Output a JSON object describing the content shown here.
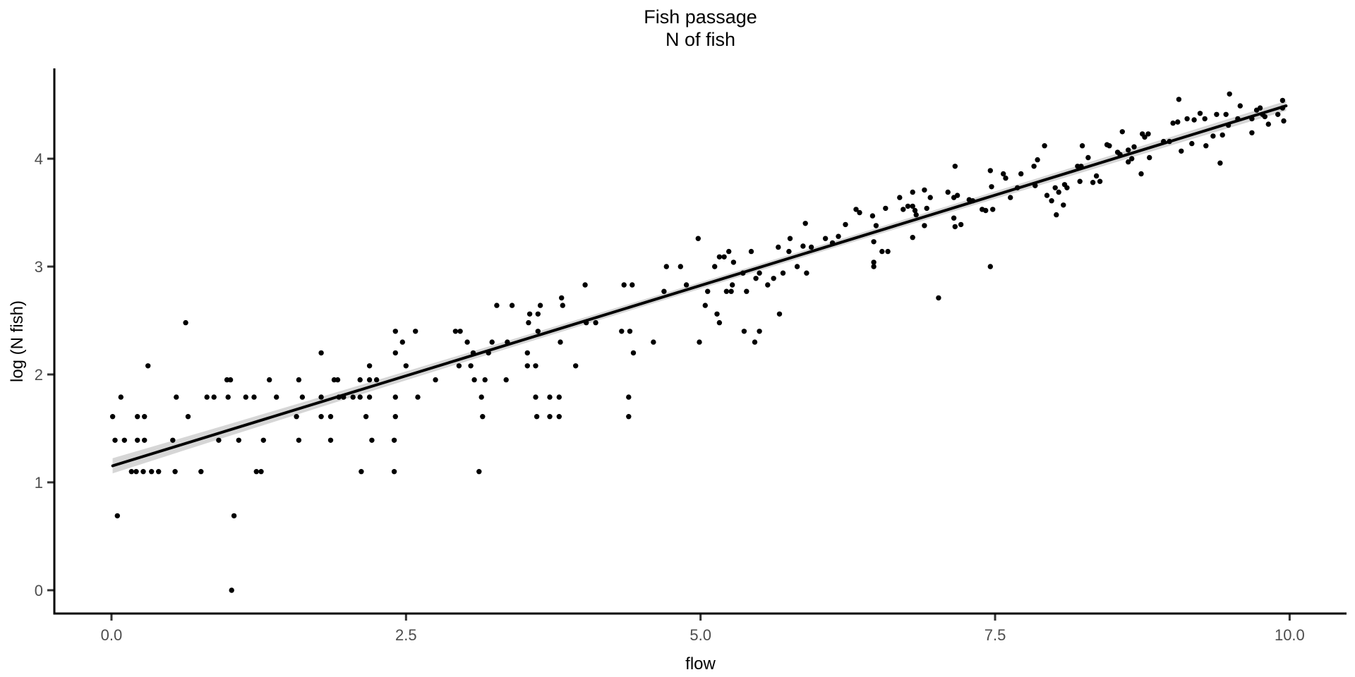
{
  "chart_data": {
    "type": "scatter",
    "title": "Fish passage\nN of fish",
    "title_line1": "Fish passage",
    "title_line2": "N of fish",
    "xlabel": "flow",
    "ylabel": "log (N fish)",
    "x_axis": {
      "tick_labels": [
        "0.0",
        "2.5",
        "5.0",
        "7.5",
        "10.0"
      ],
      "tick_values": [
        0,
        2.5,
        5,
        7.5,
        10
      ],
      "range": [
        -0.485,
        10.483
      ]
    },
    "y_axis": {
      "tick_labels": [
        "0",
        "1",
        "2",
        "3",
        "4"
      ],
      "tick_values": [
        0,
        1,
        2,
        3,
        4
      ],
      "range": [
        -0.216,
        4.837
      ]
    },
    "grid": false,
    "legend": "none",
    "colors": {
      "point": "#000000",
      "regression_line": "#000000",
      "confidence_band": "#d6d6d6",
      "axis_line": "#000000",
      "tick_mark": "#333333",
      "tick_text": "#4d4d4d",
      "title_text": "#000000",
      "background": "#ffffff"
    },
    "regression_line": {
      "intercept": 1.15,
      "slope": 0.335,
      "x_start": 0.01,
      "x_end": 9.97
    },
    "ci_band": {
      "flows": [
        0.01,
        1,
        2,
        3,
        4,
        5,
        6,
        7,
        8,
        9,
        9.97
      ],
      "halfwidths": [
        0.07,
        0.055,
        0.045,
        0.038,
        0.033,
        0.031,
        0.031,
        0.033,
        0.036,
        0.04,
        0.046
      ]
    },
    "points": [
      [
        0.63,
        2.48
      ],
      [
        1.78,
        2.2
      ],
      [
        0.31,
        2.08
      ],
      [
        2.19,
        2.08
      ],
      [
        0.98,
        1.95
      ],
      [
        1.01,
        1.95
      ],
      [
        1.34,
        1.95
      ],
      [
        1.59,
        1.95
      ],
      [
        1.89,
        1.95
      ],
      [
        1.92,
        1.95
      ],
      [
        2.11,
        1.95
      ],
      [
        2.19,
        1.95
      ],
      [
        2.25,
        1.95
      ],
      [
        0.08,
        1.79
      ],
      [
        0.55,
        1.79
      ],
      [
        0.81,
        1.79
      ],
      [
        0.87,
        1.79
      ],
      [
        0.99,
        1.79
      ],
      [
        1.14,
        1.79
      ],
      [
        1.21,
        1.79
      ],
      [
        1.4,
        1.79
      ],
      [
        1.62,
        1.79
      ],
      [
        1.78,
        1.79
      ],
      [
        1.93,
        1.79
      ],
      [
        1.97,
        1.79
      ],
      [
        2.05,
        1.79
      ],
      [
        2.11,
        1.79
      ],
      [
        2.19,
        1.79
      ],
      [
        0.01,
        1.61
      ],
      [
        0.22,
        1.61
      ],
      [
        0.28,
        1.61
      ],
      [
        0.65,
        1.61
      ],
      [
        1.57,
        1.61
      ],
      [
        1.78,
        1.61
      ],
      [
        1.86,
        1.61
      ],
      [
        2.16,
        1.61
      ],
      [
        0.03,
        1.39
      ],
      [
        0.11,
        1.39
      ],
      [
        0.22,
        1.39
      ],
      [
        0.28,
        1.39
      ],
      [
        0.52,
        1.39
      ],
      [
        0.91,
        1.39
      ],
      [
        1.08,
        1.39
      ],
      [
        1.29,
        1.39
      ],
      [
        1.59,
        1.39
      ],
      [
        1.86,
        1.39
      ],
      [
        2.21,
        1.39
      ],
      [
        2.4,
        1.39
      ],
      [
        0.17,
        1.1
      ],
      [
        0.21,
        1.1
      ],
      [
        0.27,
        1.1
      ],
      [
        0.34,
        1.1
      ],
      [
        0.4,
        1.1
      ],
      [
        0.54,
        1.1
      ],
      [
        0.76,
        1.1
      ],
      [
        1.23,
        1.1
      ],
      [
        1.27,
        1.1
      ],
      [
        2.12,
        1.1
      ],
      [
        2.4,
        1.1
      ],
      [
        3.12,
        1.1
      ],
      [
        0.05,
        0.69
      ],
      [
        1.04,
        0.69
      ],
      [
        1.02,
        0.0
      ],
      [
        2.41,
        1.61
      ],
      [
        3.15,
        1.61
      ],
      [
        3.61,
        1.61
      ],
      [
        3.72,
        1.61
      ],
      [
        3.8,
        1.61
      ],
      [
        4.39,
        1.61
      ],
      [
        2.41,
        1.79
      ],
      [
        2.6,
        1.79
      ],
      [
        3.14,
        1.79
      ],
      [
        3.6,
        1.79
      ],
      [
        3.72,
        1.79
      ],
      [
        3.8,
        1.79
      ],
      [
        4.39,
        1.79
      ],
      [
        2.75,
        1.95
      ],
      [
        3.08,
        1.95
      ],
      [
        3.17,
        1.95
      ],
      [
        3.35,
        1.95
      ],
      [
        2.5,
        2.08
      ],
      [
        2.95,
        2.08
      ],
      [
        3.05,
        2.08
      ],
      [
        3.53,
        2.08
      ],
      [
        3.6,
        2.08
      ],
      [
        3.94,
        2.08
      ],
      [
        2.41,
        2.2
      ],
      [
        3.07,
        2.2
      ],
      [
        3.2,
        2.2
      ],
      [
        3.53,
        2.2
      ],
      [
        4.43,
        2.2
      ],
      [
        2.47,
        2.3
      ],
      [
        3.02,
        2.3
      ],
      [
        3.23,
        2.3
      ],
      [
        3.36,
        2.3
      ],
      [
        3.81,
        2.3
      ],
      [
        4.6,
        2.3
      ],
      [
        4.99,
        2.3
      ],
      [
        5.46,
        2.3
      ],
      [
        2.41,
        2.4
      ],
      [
        2.58,
        2.4
      ],
      [
        2.92,
        2.4
      ],
      [
        2.96,
        2.4
      ],
      [
        3.62,
        2.4
      ],
      [
        4.33,
        2.4
      ],
      [
        4.4,
        2.4
      ],
      [
        5.37,
        2.4
      ],
      [
        5.5,
        2.4
      ],
      [
        3.54,
        2.48
      ],
      [
        4.03,
        2.48
      ],
      [
        4.11,
        2.48
      ],
      [
        5.16,
        2.48
      ],
      [
        3.55,
        2.56
      ],
      [
        3.62,
        2.56
      ],
      [
        5.14,
        2.56
      ],
      [
        5.67,
        2.56
      ],
      [
        3.27,
        2.64
      ],
      [
        3.4,
        2.64
      ],
      [
        3.64,
        2.64
      ],
      [
        3.83,
        2.64
      ],
      [
        5.04,
        2.64
      ],
      [
        3.82,
        2.71
      ],
      [
        7.02,
        2.71
      ],
      [
        4.69,
        2.77
      ],
      [
        5.06,
        2.77
      ],
      [
        5.22,
        2.77
      ],
      [
        5.26,
        2.77
      ],
      [
        5.39,
        2.77
      ],
      [
        4.02,
        2.83
      ],
      [
        4.35,
        2.83
      ],
      [
        4.42,
        2.83
      ],
      [
        4.88,
        2.83
      ],
      [
        5.27,
        2.83
      ],
      [
        5.57,
        2.83
      ],
      [
        5.47,
        2.89
      ],
      [
        5.62,
        2.89
      ],
      [
        5.36,
        2.94
      ],
      [
        5.5,
        2.94
      ],
      [
        5.7,
        2.94
      ],
      [
        5.9,
        2.94
      ],
      [
        4.71,
        3.0
      ],
      [
        4.83,
        3.0
      ],
      [
        5.12,
        3.0
      ],
      [
        5.82,
        3.0
      ],
      [
        6.47,
        3.0
      ],
      [
        7.46,
        3.0
      ],
      [
        5.28,
        3.04
      ],
      [
        6.47,
        3.04
      ],
      [
        5.16,
        3.09
      ],
      [
        5.2,
        3.09
      ],
      [
        5.24,
        3.14
      ],
      [
        5.43,
        3.14
      ],
      [
        5.75,
        3.14
      ],
      [
        6.54,
        3.14
      ],
      [
        6.59,
        3.14
      ],
      [
        5.66,
        3.18
      ],
      [
        5.87,
        3.19
      ],
      [
        5.94,
        3.18
      ],
      [
        4.98,
        3.26
      ],
      [
        5.76,
        3.26
      ],
      [
        6.06,
        3.26
      ],
      [
        6.12,
        3.22
      ],
      [
        6.17,
        3.28
      ],
      [
        6.23,
        3.39
      ],
      [
        5.89,
        3.4
      ],
      [
        6.32,
        3.53
      ],
      [
        6.35,
        3.5
      ],
      [
        6.46,
        3.47
      ],
      [
        6.49,
        3.38
      ],
      [
        6.47,
        3.23
      ],
      [
        6.57,
        3.54
      ],
      [
        6.69,
        3.64
      ],
      [
        6.72,
        3.53
      ],
      [
        6.76,
        3.56
      ],
      [
        6.8,
        3.69
      ],
      [
        6.8,
        3.56
      ],
      [
        6.82,
        3.52
      ],
      [
        6.83,
        3.48
      ],
      [
        6.9,
        3.71
      ],
      [
        6.95,
        3.64
      ],
      [
        6.92,
        3.54
      ],
      [
        6.8,
        3.27
      ],
      [
        6.9,
        3.38
      ],
      [
        7.1,
        3.69
      ],
      [
        7.15,
        3.64
      ],
      [
        7.18,
        3.66
      ],
      [
        7.16,
        3.93
      ],
      [
        7.15,
        3.45
      ],
      [
        7.16,
        3.37
      ],
      [
        7.21,
        3.39
      ],
      [
        7.28,
        3.62
      ],
      [
        7.31,
        3.61
      ],
      [
        7.39,
        3.53
      ],
      [
        7.42,
        3.52
      ],
      [
        7.48,
        3.53
      ],
      [
        7.46,
        3.89
      ],
      [
        7.47,
        3.74
      ],
      [
        7.57,
        3.86
      ],
      [
        7.59,
        3.82
      ],
      [
        7.63,
        3.64
      ],
      [
        7.69,
        3.73
      ],
      [
        7.72,
        3.86
      ],
      [
        7.83,
        3.93
      ],
      [
        7.86,
        3.99
      ],
      [
        7.92,
        4.12
      ],
      [
        7.84,
        3.75
      ],
      [
        7.94,
        3.66
      ],
      [
        7.98,
        3.61
      ],
      [
        8.01,
        3.73
      ],
      [
        8.04,
        3.69
      ],
      [
        8.02,
        3.48
      ],
      [
        8.08,
        3.57
      ],
      [
        8.09,
        3.76
      ],
      [
        8.11,
        3.73
      ],
      [
        8.2,
        3.93
      ],
      [
        8.23,
        3.93
      ],
      [
        8.24,
        4.12
      ],
      [
        8.29,
        4.01
      ],
      [
        8.22,
        3.79
      ],
      [
        8.33,
        3.78
      ],
      [
        8.36,
        3.84
      ],
      [
        8.39,
        3.79
      ],
      [
        8.45,
        4.13
      ],
      [
        8.47,
        4.12
      ],
      [
        8.54,
        4.06
      ],
      [
        8.56,
        4.04
      ],
      [
        8.58,
        4.25
      ],
      [
        8.63,
        4.08
      ],
      [
        8.68,
        4.11
      ],
      [
        8.63,
        3.97
      ],
      [
        8.66,
        4.0
      ],
      [
        8.75,
        4.23
      ],
      [
        8.77,
        4.2
      ],
      [
        8.8,
        4.23
      ],
      [
        8.81,
        4.01
      ],
      [
        8.74,
        3.86
      ],
      [
        8.93,
        4.16
      ],
      [
        8.98,
        4.16
      ],
      [
        9.01,
        4.33
      ],
      [
        9.05,
        4.34
      ],
      [
        9.06,
        4.55
      ],
      [
        9.49,
        4.6
      ],
      [
        9.58,
        4.49
      ],
      [
        9.13,
        4.37
      ],
      [
        9.19,
        4.36
      ],
      [
        9.24,
        4.42
      ],
      [
        9.28,
        4.37
      ],
      [
        9.38,
        4.41
      ],
      [
        9.46,
        4.41
      ],
      [
        9.48,
        4.31
      ],
      [
        9.56,
        4.37
      ],
      [
        9.68,
        4.37
      ],
      [
        9.72,
        4.45
      ],
      [
        9.75,
        4.47
      ],
      [
        9.77,
        4.41
      ],
      [
        9.79,
        4.39
      ],
      [
        9.82,
        4.32
      ],
      [
        9.9,
        4.41
      ],
      [
        9.94,
        4.54
      ],
      [
        9.94,
        4.47
      ],
      [
        9.95,
        4.35
      ],
      [
        9.68,
        4.24
      ],
      [
        9.35,
        4.21
      ],
      [
        9.43,
        4.22
      ],
      [
        9.17,
        4.14
      ],
      [
        9.29,
        4.12
      ],
      [
        9.08,
        4.07
      ],
      [
        9.41,
        3.96
      ]
    ]
  }
}
